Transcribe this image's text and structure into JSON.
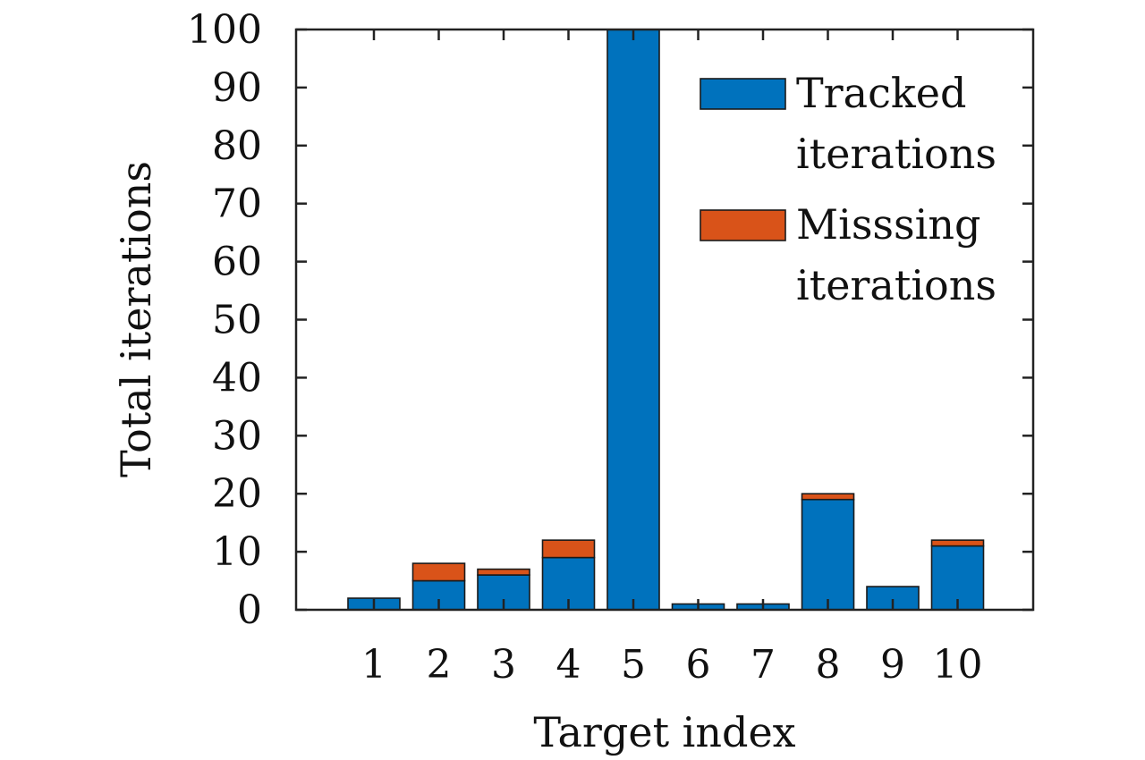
{
  "chart_data": {
    "type": "bar",
    "stacked": true,
    "title": "",
    "xlabel": "Target index",
    "ylabel": "Total iterations",
    "categories": [
      "1",
      "2",
      "3",
      "4",
      "5",
      "6",
      "7",
      "8",
      "9",
      "10"
    ],
    "ylim": [
      0,
      100
    ],
    "yticks": [
      0,
      10,
      20,
      30,
      40,
      50,
      60,
      70,
      80,
      90,
      100
    ],
    "grid": false,
    "legend_position": "top-right",
    "series": [
      {
        "name": "Tracked iterations",
        "legend_lines": [
          "Tracked",
          "iterations"
        ],
        "color": "#0072bd",
        "values": [
          2,
          5,
          6,
          9,
          100,
          1,
          1,
          19,
          4,
          11
        ]
      },
      {
        "name": "Misssing iterations",
        "legend_lines": [
          "Misssing",
          "iterations"
        ],
        "color": "#d95319",
        "values": [
          0,
          3,
          1,
          3,
          0,
          0,
          0,
          1,
          0,
          1
        ]
      }
    ]
  }
}
